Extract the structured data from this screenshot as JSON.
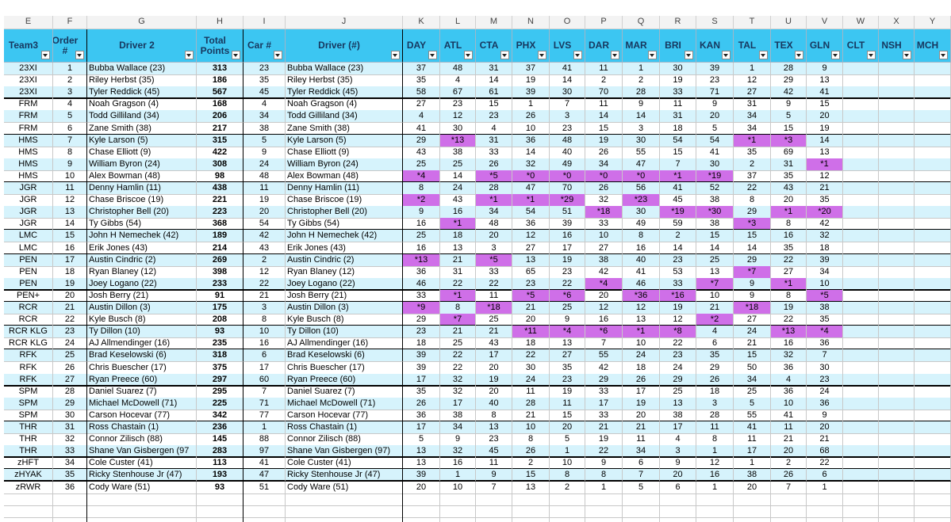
{
  "column_letters": [
    "E",
    "F",
    "G",
    "H",
    "I",
    "J",
    "K",
    "L",
    "M",
    "N",
    "O",
    "P",
    "Q",
    "R",
    "S",
    "T",
    "U",
    "V",
    "W",
    "X",
    "Y"
  ],
  "headers": [
    "Team3",
    "Order #",
    "Driver 2",
    "Total Points",
    "Car #",
    "Driver (#)",
    "DAY",
    "ATL",
    "CTA",
    "PHX",
    "LVS",
    "DAR",
    "MAR",
    "BRI",
    "KAN",
    "TAL",
    "TEX",
    "GLN",
    "CLT",
    "NSH",
    "MCH"
  ],
  "highlight_color": "#cf6fe8",
  "header_color": "#3cc6f2",
  "band_color": "#d6f3fc",
  "rows": [
    [
      "23XI",
      1,
      "Bubba Wallace (23)",
      313,
      23,
      "Bubba Wallace (23)",
      37,
      48,
      31,
      37,
      41,
      11,
      1,
      30,
      39,
      1,
      28,
      9
    ],
    [
      "23XI",
      2,
      "Riley Herbst (35)",
      186,
      35,
      "Riley Herbst (35)",
      35,
      4,
      14,
      19,
      14,
      2,
      2,
      19,
      23,
      12,
      29,
      13
    ],
    [
      "23XI",
      3,
      "Tyler Reddick (45)",
      567,
      45,
      "Tyler Reddick (45)",
      58,
      67,
      61,
      39,
      30,
      70,
      28,
      33,
      71,
      27,
      42,
      41
    ],
    [
      "FRM",
      4,
      "Noah Gragson (4)",
      168,
      4,
      "Noah Gragson (4)",
      27,
      23,
      15,
      1,
      7,
      11,
      9,
      11,
      9,
      31,
      9,
      15
    ],
    [
      "FRM",
      5,
      "Todd Gilliland (34)",
      206,
      34,
      "Todd Gilliland (34)",
      4,
      12,
      23,
      26,
      3,
      14,
      14,
      31,
      20,
      34,
      5,
      20
    ],
    [
      "FRM",
      6,
      "Zane Smith (38)",
      217,
      38,
      "Zane Smith (38)",
      41,
      30,
      4,
      10,
      23,
      15,
      3,
      18,
      5,
      34,
      15,
      19
    ],
    [
      "HMS",
      7,
      "Kyle Larson (5)",
      315,
      5,
      "Kyle Larson (5)",
      29,
      "*13",
      31,
      36,
      48,
      19,
      30,
      54,
      54,
      "*1",
      "*3",
      14
    ],
    [
      "HMS",
      8,
      "Chase Elliott (9)",
      422,
      9,
      "Chase Elliott (9)",
      43,
      38,
      33,
      14,
      40,
      26,
      55,
      15,
      41,
      35,
      69,
      13
    ],
    [
      "HMS",
      9,
      "William Byron (24)",
      308,
      24,
      "William Byron (24)",
      25,
      25,
      26,
      32,
      49,
      34,
      47,
      7,
      30,
      2,
      31,
      "*1"
    ],
    [
      "HMS",
      10,
      "Alex Bowman (48)",
      98,
      48,
      "Alex Bowman (48)",
      "*4",
      14,
      "*5",
      "*0",
      "*0",
      "*0",
      "*0",
      "*1",
      "*19",
      37,
      35,
      12
    ],
    [
      "JGR",
      11,
      "Denny Hamlin (11)",
      438,
      11,
      "Denny Hamlin (11)",
      8,
      24,
      28,
      47,
      70,
      26,
      56,
      41,
      52,
      22,
      43,
      21
    ],
    [
      "JGR",
      12,
      "Chase Briscoe (19)",
      221,
      19,
      "Chase Briscoe (19)",
      "*2",
      43,
      "*1",
      "*1",
      "*29",
      32,
      "*23",
      45,
      38,
      8,
      20,
      35
    ],
    [
      "JGR",
      13,
      "Christopher Bell (20)",
      223,
      20,
      "Christopher Bell (20)",
      9,
      16,
      34,
      54,
      51,
      "*18",
      30,
      "*19",
      "*30",
      29,
      "*1",
      "*20"
    ],
    [
      "JGR",
      14,
      "Ty Gibbs (54)",
      368,
      54,
      "Ty Gibbs (54)",
      16,
      "*1",
      48,
      36,
      39,
      33,
      49,
      59,
      38,
      "*3",
      8,
      42
    ],
    [
      "LMC",
      15,
      "John H Nemechek (42)",
      189,
      42,
      "John H Nemechek (42)",
      25,
      18,
      20,
      12,
      16,
      10,
      8,
      2,
      15,
      15,
      16,
      32
    ],
    [
      "LMC",
      16,
      "Erik Jones (43)",
      214,
      43,
      "Erik Jones (43)",
      16,
      13,
      3,
      27,
      17,
      27,
      16,
      14,
      14,
      14,
      35,
      18
    ],
    [
      "PEN",
      17,
      "Austin Cindric (2)",
      269,
      2,
      "Austin Cindric (2)",
      "*13",
      21,
      "*5",
      13,
      19,
      38,
      40,
      23,
      25,
      29,
      22,
      39
    ],
    [
      "PEN",
      18,
      "Ryan Blaney (12)",
      398,
      12,
      "Ryan Blaney (12)",
      36,
      31,
      33,
      65,
      23,
      42,
      41,
      53,
      13,
      "*7",
      27,
      34
    ],
    [
      "PEN",
      19,
      "Joey Logano (22)",
      233,
      22,
      "Joey Logano (22)",
      46,
      22,
      22,
      23,
      22,
      "*4",
      46,
      33,
      "*7",
      9,
      "*1",
      10
    ],
    [
      "PEN+",
      20,
      "Josh Berry (21)",
      91,
      21,
      "Josh Berry (21)",
      33,
      "*1",
      11,
      "*5",
      "*6",
      20,
      "*36",
      "*16",
      10,
      9,
      8,
      "*5"
    ],
    [
      "RCR",
      21,
      "Austin Dillon (3)",
      175,
      3,
      "Austin Dillon (3)",
      "*9",
      8,
      "*18",
      21,
      25,
      12,
      12,
      19,
      21,
      "*18",
      19,
      38
    ],
    [
      "RCR",
      22,
      "Kyle Busch (8)",
      208,
      8,
      "Kyle Busch (8)",
      29,
      "*7",
      25,
      20,
      9,
      16,
      13,
      12,
      "*2",
      27,
      22,
      35
    ],
    [
      "RCR KLG",
      23,
      "Ty Dillon (10)",
      93,
      10,
      "Ty Dillon (10)",
      23,
      21,
      21,
      "*11",
      "*4",
      "*6",
      "*1",
      "*8",
      4,
      24,
      "*13",
      "*4"
    ],
    [
      "RCR KLG",
      24,
      "AJ Allmendinger (16)",
      235,
      16,
      "AJ Allmendinger (16)",
      18,
      25,
      43,
      18,
      13,
      7,
      10,
      22,
      6,
      21,
      16,
      36
    ],
    [
      "RFK",
      25,
      "Brad Keselowski (6)",
      318,
      6,
      "Brad Keselowski (6)",
      39,
      22,
      17,
      22,
      27,
      55,
      24,
      23,
      35,
      15,
      32,
      7
    ],
    [
      "RFK",
      26,
      "Chris Buescher (17)",
      375,
      17,
      "Chris Buescher (17)",
      39,
      22,
      20,
      30,
      35,
      42,
      18,
      24,
      29,
      50,
      36,
      30
    ],
    [
      "RFK",
      27,
      "Ryan Preece (60)",
      297,
      60,
      "Ryan Preece (60)",
      17,
      32,
      19,
      24,
      23,
      29,
      26,
      29,
      26,
      34,
      4,
      23
    ],
    [
      "SPM",
      28,
      "Daniel Suarez (7)",
      295,
      7,
      "Daniel Suarez (7)",
      35,
      32,
      20,
      11,
      19,
      33,
      17,
      25,
      18,
      25,
      36,
      24
    ],
    [
      "SPM",
      29,
      "Michael McDowell (71)",
      225,
      71,
      "Michael McDowell (71)",
      26,
      17,
      40,
      28,
      11,
      17,
      19,
      13,
      3,
      5,
      10,
      36
    ],
    [
      "SPM",
      30,
      "Carson Hocevar (77)",
      342,
      77,
      "Carson Hocevar (77)",
      36,
      38,
      8,
      21,
      15,
      33,
      20,
      38,
      28,
      55,
      41,
      9
    ],
    [
      "THR",
      31,
      "Ross Chastain (1)",
      236,
      1,
      "Ross Chastain (1)",
      17,
      34,
      13,
      10,
      20,
      21,
      21,
      17,
      11,
      41,
      11,
      20
    ],
    [
      "THR",
      32,
      "Connor Zilisch (88)",
      145,
      88,
      "Connor Zilisch (88)",
      5,
      9,
      23,
      8,
      5,
      19,
      11,
      4,
      8,
      11,
      21,
      21
    ],
    [
      "THR",
      33,
      "Shane Van Gisbergen (97",
      283,
      97,
      "Shane Van Gisbergen (97)",
      13,
      32,
      45,
      26,
      1,
      22,
      34,
      3,
      1,
      17,
      20,
      68
    ],
    [
      "zHFT",
      34,
      "Cole Custer (41)",
      113,
      41,
      "Cole Custer (41)",
      13,
      16,
      11,
      2,
      10,
      9,
      6,
      9,
      12,
      1,
      2,
      22
    ],
    [
      "zHYAK",
      35,
      "Ricky Stenhouse Jr (47)",
      193,
      47,
      "Ricky Stenhouse Jr (47)",
      39,
      1,
      9,
      15,
      8,
      8,
      7,
      20,
      16,
      38,
      26,
      6
    ],
    [
      "zRWR",
      36,
      "Cody Ware (51)",
      93,
      51,
      "Cody Ware (51)",
      20,
      10,
      7,
      13,
      2,
      1,
      5,
      6,
      1,
      20,
      7,
      1
    ]
  ]
}
